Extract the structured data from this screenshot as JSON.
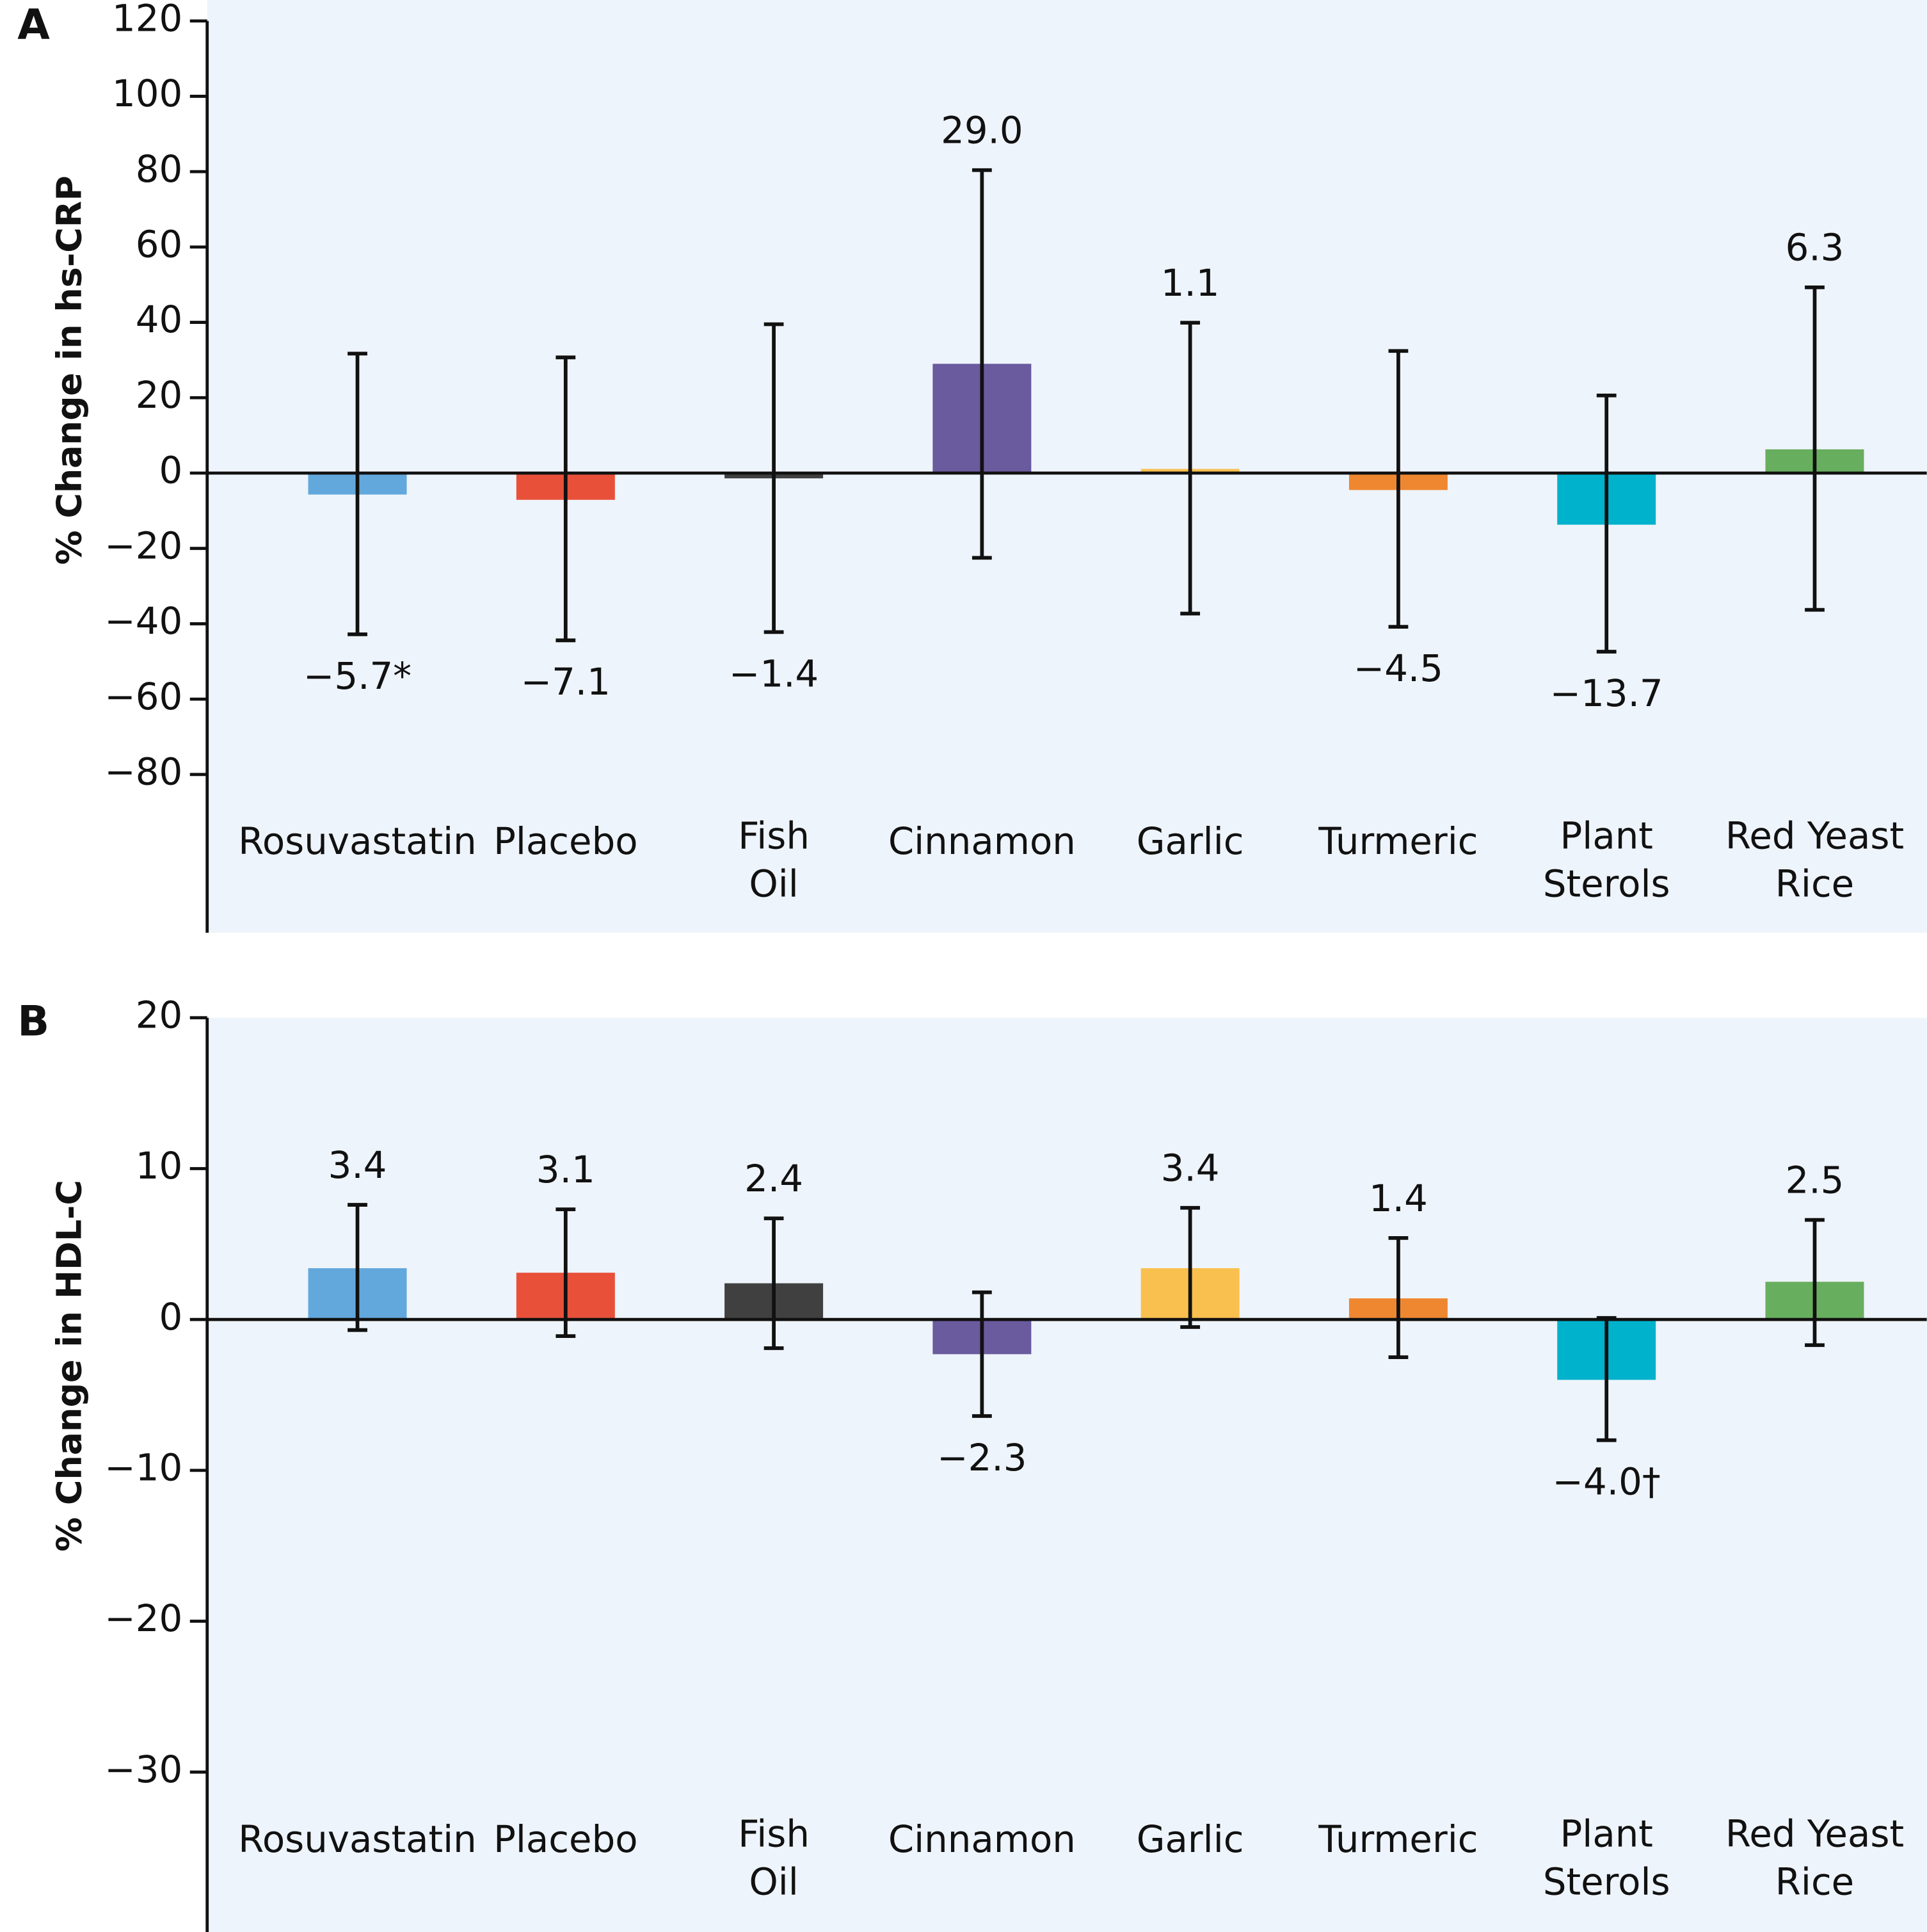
{
  "chart_data": [
    {
      "type": "bar",
      "panel": "A",
      "ylabel": "% Change in hs-CRP",
      "categories": [
        [
          "Rosuvastatin"
        ],
        [
          "Placebo"
        ],
        [
          "Fish",
          "Oil"
        ],
        [
          "Cinnamon"
        ],
        [
          "Garlic"
        ],
        [
          "Turmeric"
        ],
        [
          "Plant",
          "Sterols"
        ],
        [
          "Red Yeast",
          "Rice"
        ]
      ],
      "values": [
        -5.7,
        -7.1,
        -1.4,
        29.0,
        1.1,
        -4.5,
        -13.7,
        6.3
      ],
      "value_labels": [
        "−5.7*",
        "−7.1",
        "−1.4",
        "29.0",
        "1.1",
        "−4.5",
        "−13.7",
        "6.3"
      ],
      "error_low": [
        -42.8,
        -44.4,
        -42.2,
        -22.5,
        -37.3,
        -40.8,
        -47.4,
        -36.3
      ],
      "error_high": [
        31.7,
        30.7,
        39.5,
        80.4,
        39.9,
        32.4,
        20.6,
        49.3
      ],
      "colors": [
        "#63a8dc",
        "#e8503a",
        "#404040",
        "#6a5a9e",
        "#f9c04f",
        "#ef8730",
        "#00b2cc",
        "#68ae5f"
      ],
      "ylim": [
        -122,
        120
      ],
      "yticks": [
        120,
        100,
        80,
        60,
        40,
        20,
        0,
        {
          "value": -20,
          "label": "−20"
        },
        {
          "value": -40,
          "label": "−40"
        },
        {
          "value": -60,
          "label": "−60"
        },
        {
          "value": -80,
          "label": "−80"
        }
      ]
    },
    {
      "type": "bar",
      "panel": "B",
      "ylabel": "% Change in HDL-C",
      "categories": [
        [
          "Rosuvastatin"
        ],
        [
          "Placebo"
        ],
        [
          "Fish",
          "Oil"
        ],
        [
          "Cinnamon"
        ],
        [
          "Garlic"
        ],
        [
          "Turmeric"
        ],
        [
          "Plant",
          "Sterols"
        ],
        [
          "Red Yeast",
          "Rice"
        ]
      ],
      "values": [
        3.4,
        3.1,
        2.4,
        -2.3,
        3.4,
        1.4,
        -4.0,
        2.5
      ],
      "value_labels": [
        "3.4",
        "3.1",
        "2.4",
        "−2.3",
        "3.4",
        "1.4",
        "−4.0†",
        "2.5"
      ],
      "error_low": [
        -0.7,
        -1.1,
        -1.9,
        -6.4,
        -0.5,
        -2.5,
        -8.0,
        -1.7
      ],
      "error_high": [
        7.6,
        7.3,
        6.7,
        1.8,
        7.4,
        5.4,
        0.1,
        6.6
      ],
      "colors": [
        "#63a8dc",
        "#e8503a",
        "#404040",
        "#6a5a9e",
        "#f9c04f",
        "#ef8730",
        "#00b2cc",
        "#68ae5f"
      ],
      "ylim": [
        -40.6,
        20
      ],
      "yticks": [
        20,
        10,
        0,
        {
          "value": -10,
          "label": "−10"
        },
        {
          "value": -20,
          "label": "−20"
        },
        {
          "value": -30,
          "label": "−30"
        }
      ]
    }
  ]
}
